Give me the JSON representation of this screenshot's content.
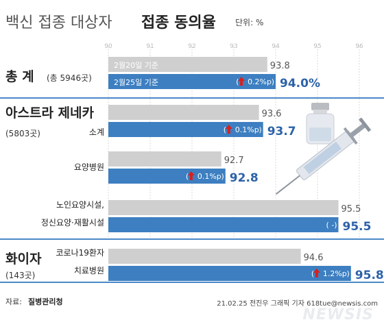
{
  "title_light": "백신 접종 대상자",
  "title_bold": "접종 동의율",
  "unit": "단위: %",
  "source_label": "자료:",
  "source_name": "질병관리청",
  "credit": "21.02.25 전진우 그래픽 기자 618tue@newsis.com",
  "watermark": "NEWSIS",
  "colors": {
    "old": "#cfcfcf",
    "new": "#3d7fc1",
    "value_new": "#2d62a8",
    "arrow": "#d8201c",
    "rule": "#4a88c8",
    "title_light": "#555555"
  },
  "groups": [
    {
      "name": "총 계",
      "sub": "(총 5946곳)"
    },
    {
      "name": "아스트라 제네카",
      "sub": "(5803곳)"
    },
    {
      "name": "화이자",
      "sub": "(143곳)"
    }
  ],
  "chart_data": {
    "type": "bar",
    "axis": {
      "ticks": [
        "90",
        "91",
        "92",
        "93",
        "94",
        "95",
        "96"
      ],
      "xlim": [
        90,
        96.6
      ]
    },
    "rows": [
      {
        "group": 0,
        "labels": [],
        "old": 93.8,
        "new": 94.0,
        "old_label": "93.8",
        "new_label": "94.0%",
        "change": "0.2%p",
        "up": true,
        "bar_old_text": "2월20일 기준",
        "bar_new_text": "2월25일 기준"
      },
      {
        "group": 1,
        "labels": [
          "소계"
        ],
        "old": 93.6,
        "new": 93.7,
        "old_label": "93.6",
        "new_label": "93.7",
        "change": "0.1%p",
        "up": true
      },
      {
        "group": 1,
        "labels": [
          "요양병원"
        ],
        "old": 92.7,
        "new": 92.8,
        "old_label": "92.7",
        "new_label": "92.8",
        "change": "0.1%p",
        "up": true
      },
      {
        "group": 1,
        "labels": [
          "노인요양시설,",
          "정신요양·재활시설"
        ],
        "old": 95.5,
        "new": 95.5,
        "old_label": "95.5",
        "new_label": "95.5",
        "change": "-",
        "up": false
      },
      {
        "group": 2,
        "labels": [
          "코로나19환자",
          "치료병원"
        ],
        "old": 94.6,
        "new": 95.8,
        "old_label": "94.6",
        "new_label": "95.8",
        "change": "1.2%p",
        "up": true
      }
    ]
  }
}
